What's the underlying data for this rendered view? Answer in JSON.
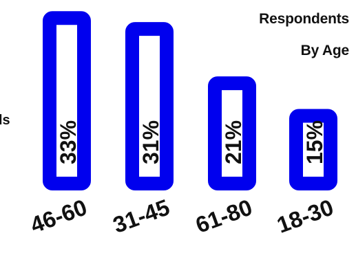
{
  "chart_data": {
    "type": "bar",
    "title_lines": [
      "Respondents",
      "By Age"
    ],
    "side_label": "ls",
    "categories": [
      "46-60",
      "31-45",
      "61-80",
      "18-30"
    ],
    "values": [
      33,
      31,
      21,
      15
    ],
    "value_labels": [
      "33%",
      "31%",
      "21%",
      "15%"
    ],
    "value_unit": "%",
    "bar_color": "#0000ee",
    "bar_fill": "#ffffff",
    "text_color": "#111111",
    "ylim": [
      0,
      35
    ]
  }
}
